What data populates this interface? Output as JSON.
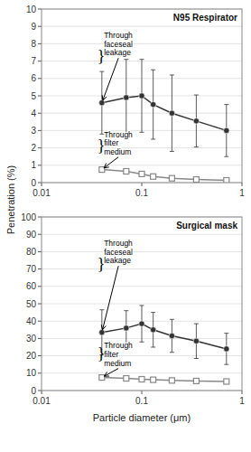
{
  "chart_data": [
    {
      "type": "line",
      "title": "N95 Respirator",
      "ylabel": "Penetration (%)",
      "log": "x",
      "grid": true,
      "xlim": [
        0.01,
        1.0
      ],
      "xticks": [
        0.01,
        0.1,
        1
      ],
      "ylim": [
        0,
        10
      ],
      "yticks": [
        0,
        1,
        2,
        3,
        4,
        5,
        6,
        7,
        8,
        9,
        10
      ],
      "x": [
        0.04,
        0.07,
        0.1,
        0.13,
        0.2,
        0.35,
        0.7
      ],
      "series": [
        {
          "color": "#333333",
          "marker": "circle",
          "line_style": "solid",
          "values": [
            4.6,
            4.9,
            5.0,
            4.5,
            4.0,
            3.55,
            3.0
          ],
          "error_low": [
            1.8,
            2.2,
            2.1,
            2.0,
            2.2,
            1.5,
            1.5
          ],
          "error_high": [
            1.8,
            2.2,
            2.1,
            2.0,
            2.2,
            1.5,
            1.5
          ]
        },
        {
          "color": "#888888",
          "marker": "square",
          "line_style": "solid",
          "values": [
            0.75,
            0.65,
            0.5,
            0.35,
            0.25,
            0.18,
            0.13
          ],
          "error_low": [
            0.12,
            0.1,
            0.1,
            0.08,
            0.06,
            0.05,
            0.04
          ],
          "error_high": [
            0.12,
            0.1,
            0.1,
            0.08,
            0.06,
            0.05,
            0.04
          ]
        }
      ],
      "annotations": [
        {
          "text": "Through\nfaceseal\nleakage",
          "x": 0.042,
          "y": 8.7,
          "arrow_x": 0.04,
          "arrow_y": 4.6
        },
        {
          "text": "Through\nfilter\nmedium",
          "x": 0.042,
          "y": 3.0,
          "arrow_x": 0.04,
          "arrow_y": 0.75
        },
        {
          "text": "}",
          "x": 0.036,
          "y": 7.8
        },
        {
          "text": "}",
          "x": 0.036,
          "y": 2.6
        }
      ]
    },
    {
      "type": "line",
      "title": "Surgical mask",
      "xlabel": "Particle diameter (μm)",
      "log": "x",
      "grid": true,
      "xlim": [
        0.01,
        1.0
      ],
      "xticks": [
        0.01,
        0.1,
        1
      ],
      "ylim": [
        0,
        100
      ],
      "yticks": [
        0,
        10,
        20,
        30,
        40,
        50,
        60,
        70,
        80,
        90,
        100
      ],
      "x": [
        0.04,
        0.07,
        0.1,
        0.13,
        0.2,
        0.35,
        0.7
      ],
      "series": [
        {
          "color": "#333333",
          "marker": "circle",
          "line_style": "solid",
          "values": [
            33.5,
            36.0,
            38.5,
            35.0,
            31.5,
            28.5,
            24.0
          ],
          "error_low": [
            13.0,
            10.0,
            10.5,
            10.0,
            9.5,
            10.0,
            9.0
          ],
          "error_high": [
            13.0,
            10.0,
            10.5,
            10.0,
            9.5,
            10.0,
            9.0
          ]
        },
        {
          "color": "#888888",
          "marker": "square",
          "line_style": "solid",
          "values": [
            7.5,
            7.0,
            6.5,
            6.2,
            5.8,
            5.5,
            5.2
          ],
          "error_low": [
            0.5,
            0.4,
            0.4,
            0.4,
            0.3,
            0.3,
            0.3
          ],
          "error_high": [
            0.5,
            0.4,
            0.4,
            0.4,
            0.3,
            0.3,
            0.3
          ]
        }
      ],
      "annotations": [
        {
          "text": "Through\nfaceseal\nleakage",
          "x": 0.042,
          "y": 87.0,
          "arrow_x": 0.04,
          "arrow_y": 33.5
        },
        {
          "text": "Through\nfilter\nmedium",
          "x": 0.042,
          "y": 28.0,
          "arrow_x": 0.04,
          "arrow_y": 7.5
        },
        {
          "text": "}",
          "x": 0.036,
          "y": 78
        },
        {
          "text": "}",
          "x": 0.036,
          "y": 26
        }
      ]
    }
  ]
}
